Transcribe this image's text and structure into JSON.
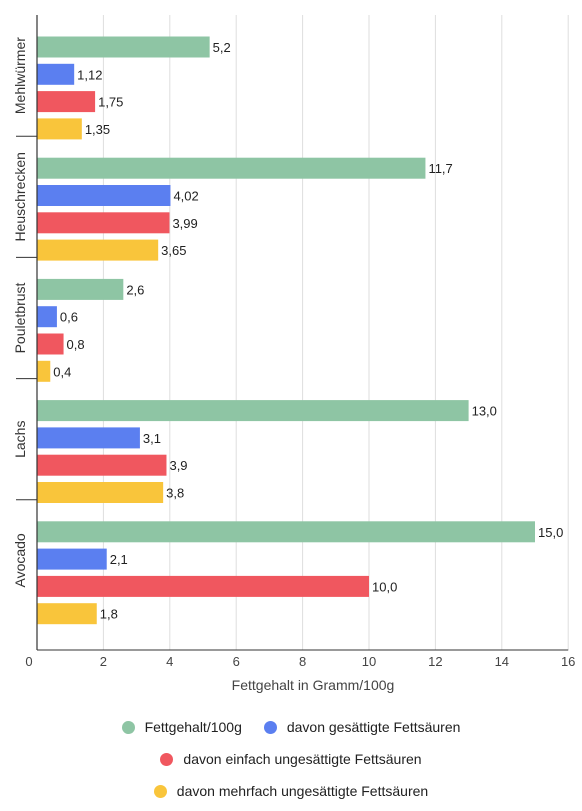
{
  "chart_data": {
    "type": "bar",
    "orientation": "horizontal",
    "categories": [
      "Mehlwürmer",
      "Heuschrecken",
      "Pouletbrust",
      "Lachs",
      "Avocado"
    ],
    "series": [
      {
        "name": "Fettgehalt/100g",
        "color": "#8ec5a4",
        "values": [
          5.2,
          11.7,
          2.6,
          13.0,
          15.0
        ],
        "labels": [
          "5,2",
          "11,7",
          "2,6",
          "13,0",
          "15,0"
        ]
      },
      {
        "name": "davon gesättigte Fettsäuren",
        "color": "#5b7ff0",
        "values": [
          1.12,
          4.02,
          0.6,
          3.1,
          2.1
        ],
        "labels": [
          "1,12",
          "4,02",
          "0,6",
          "3,1",
          "2,1"
        ]
      },
      {
        "name": "davon einfach ungesättigte Fettsäuren",
        "color": "#f0575f",
        "values": [
          1.75,
          3.99,
          0.8,
          3.9,
          10.0
        ],
        "labels": [
          "1,75",
          "3,99",
          "0,8",
          "3,9",
          "10,0"
        ]
      },
      {
        "name": "davon mehrfach ungesättigte Fettsäuren",
        "color": "#f9c53b",
        "values": [
          1.35,
          3.65,
          0.4,
          3.8,
          1.8
        ],
        "labels": [
          "1,35",
          "3,65",
          "0,4",
          "3,8",
          "1,8"
        ]
      }
    ],
    "xlabel": "Fettgehalt in Gramm/100g",
    "ylabel": "",
    "xlim": [
      0,
      16
    ],
    "xticks": [
      0,
      2,
      4,
      6,
      8,
      10,
      12,
      14,
      16
    ],
    "grid": true,
    "legend": "bottom"
  }
}
